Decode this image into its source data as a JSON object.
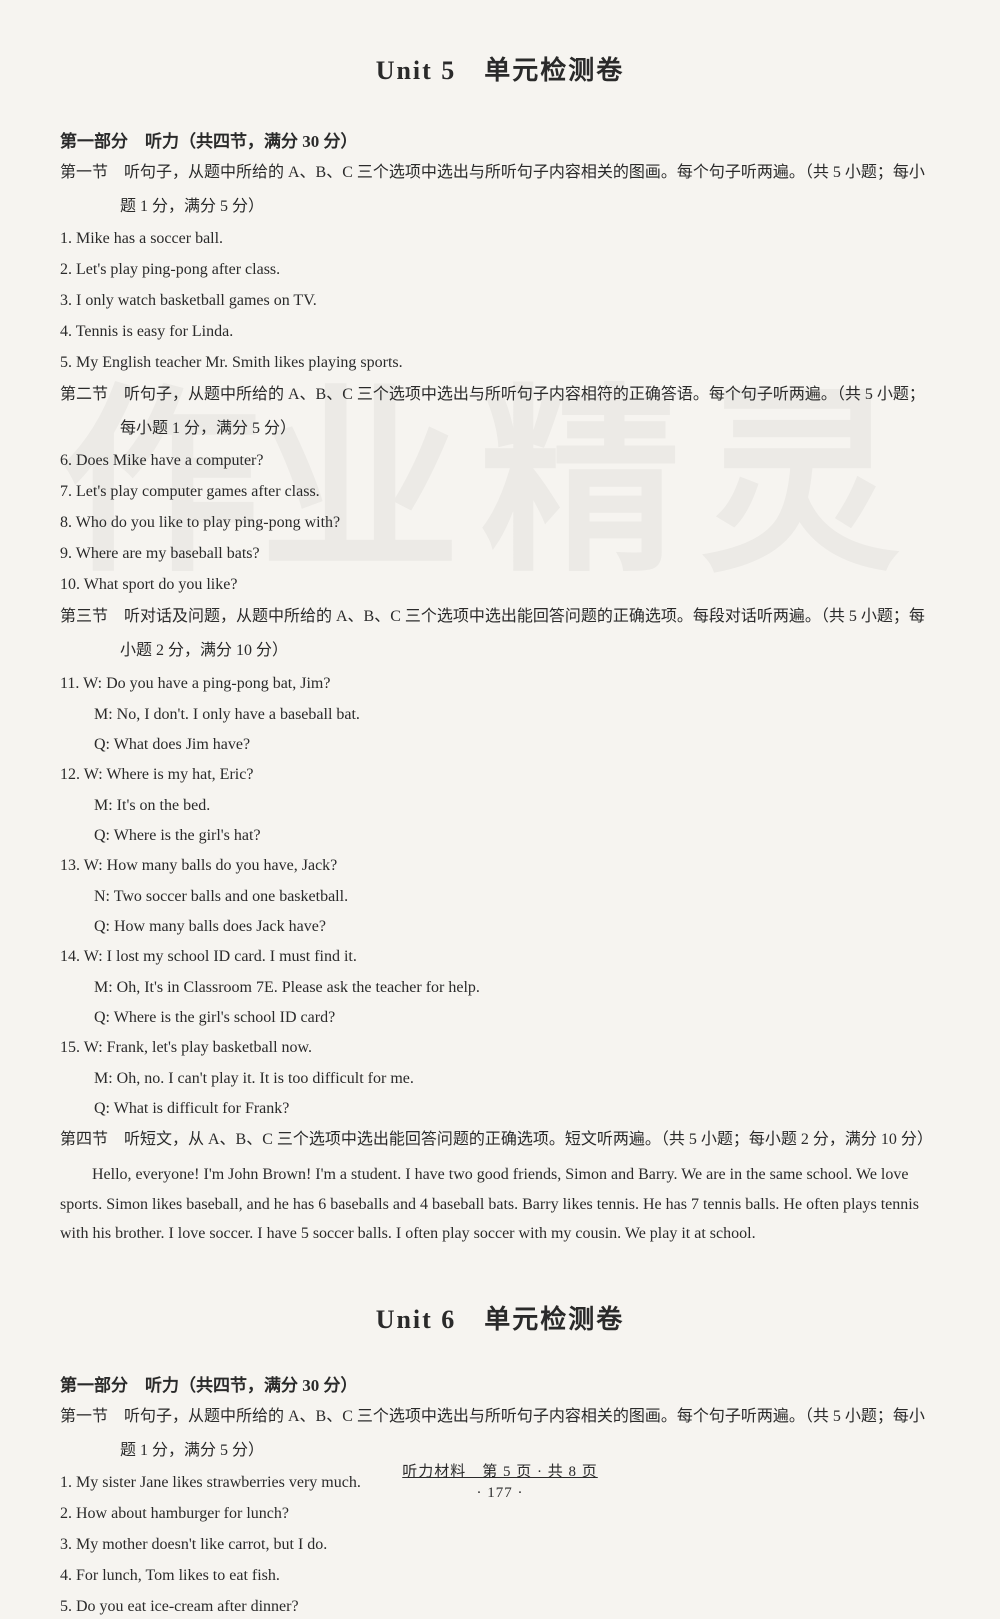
{
  "watermark1": "作业",
  "watermark2": "精灵",
  "unit5": {
    "title": "Unit 5　单元检测卷",
    "part1_header": "第一部分　听力（共四节，满分 30 分）",
    "sec1_intro": "第一节　听句子，从题中所给的 A、B、C 三个选项中选出与所听句子内容相关的图画。每个句子听两遍。（共 5 小题；每小",
    "sec1_intro2": "题 1 分，满分 5 分）",
    "sec1_items": [
      "1. Mike has a soccer ball.",
      "2. Let's play ping-pong after class.",
      "3. I only watch basketball games on TV.",
      "4. Tennis is easy for Linda.",
      "5. My English teacher Mr. Smith likes playing sports."
    ],
    "sec2_intro": "第二节　听句子，从题中所给的 A、B、C 三个选项中选出与所听句子内容相符的正确答语。每个句子听两遍。（共 5 小题；",
    "sec2_intro2": "每小题 1 分，满分 5 分）",
    "sec2_items": [
      "6. Does Mike have a computer?",
      "7. Let's play computer games after class.",
      "8. Who do you like to play ping-pong with?",
      "9. Where are my baseball bats?",
      "10. What sport do you like?"
    ],
    "sec3_intro": "第三节　听对话及问题，从题中所给的 A、B、C 三个选项中选出能回答问题的正确选项。每段对话听两遍。（共 5 小题；每",
    "sec3_intro2": "小题 2 分，满分 10 分）",
    "sec3_dialogues": [
      {
        "num": "11.",
        "lines": [
          "W: Do you have a ping-pong bat, Jim?",
          "M: No, I don't. I only have a baseball bat.",
          "Q: What does Jim have?"
        ]
      },
      {
        "num": "12.",
        "lines": [
          "W: Where is my hat, Eric?",
          "M: It's on the bed.",
          "Q: Where is the girl's hat?"
        ]
      },
      {
        "num": "13.",
        "lines": [
          "W: How many balls do you have, Jack?",
          "N: Two soccer balls and one basketball.",
          "Q: How many balls does Jack have?"
        ]
      },
      {
        "num": "14.",
        "lines": [
          "W: I lost my school ID card. I must find it.",
          "M: Oh, It's in Classroom 7E. Please ask the teacher for help.",
          "Q: Where is the girl's school ID card?"
        ]
      },
      {
        "num": "15.",
        "lines": [
          "W: Frank, let's play basketball now.",
          "M: Oh, no. I can't play it. It is too difficult for me.",
          "Q: What is difficult for Frank?"
        ]
      }
    ],
    "sec4_intro": "第四节　听短文，从 A、B、C 三个选项中选出能回答问题的正确选项。短文听两遍。（共 5 小题；每小题 2 分，满分 10 分）",
    "sec4_para": "Hello, everyone! I'm John Brown! I'm a student. I have two good friends, Simon and Barry. We are in the same school. We love sports. Simon likes baseball, and he has 6 baseballs and 4 baseball bats. Barry likes tennis. He has 7 tennis balls. He often plays tennis with his brother. I love soccer. I have 5 soccer balls. I often play soccer with my cousin. We play it at school."
  },
  "unit6": {
    "title": "Unit 6　单元检测卷",
    "part1_header": "第一部分　听力（共四节，满分 30 分）",
    "sec1_intro": "第一节　听句子，从题中所给的 A、B、C 三个选项中选出与所听句子内容相关的图画。每个句子听两遍。（共 5 小题；每小",
    "sec1_intro2": "题 1 分，满分 5 分）",
    "sec1_items": [
      "1. My sister Jane likes strawberries very much.",
      "2. How about hamburger for lunch?",
      "3. My mother doesn't like carrot, but I do.",
      "4. For lunch, Tom likes to eat fish.",
      "5. Do you eat ice-cream after dinner?"
    ]
  },
  "footer": {
    "line1": "听力材料　第 5 页 · 共 8 页",
    "line2": "· 177 ·"
  }
}
